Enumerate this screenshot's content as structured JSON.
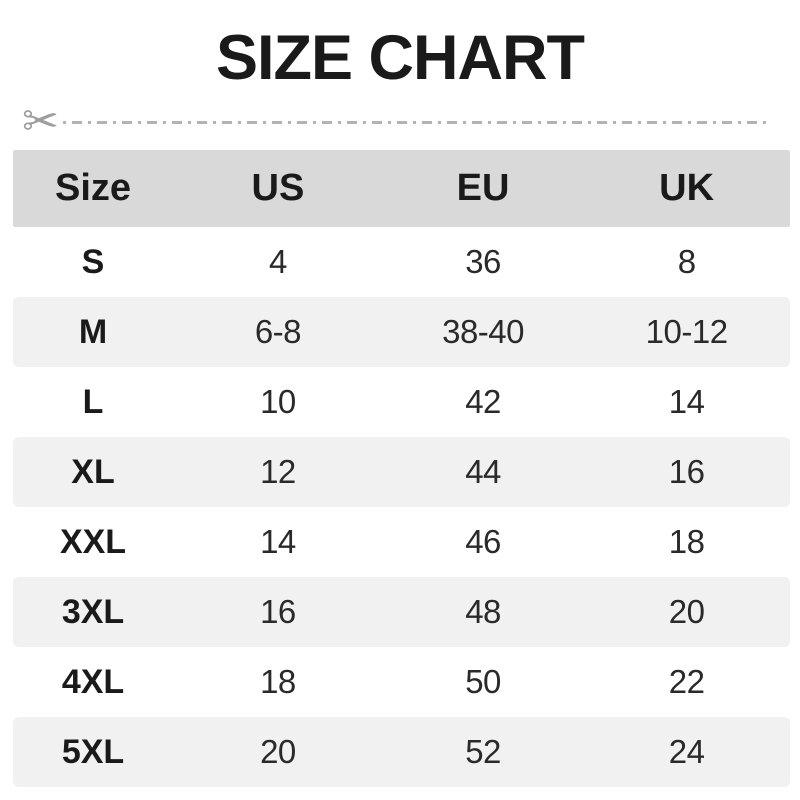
{
  "page": {
    "title": "SIZE CHART"
  },
  "cut_line": {
    "scissors_icon": "✂"
  },
  "chart_data": {
    "type": "table",
    "title": "SIZE CHART",
    "columns": [
      "Size",
      "US",
      "EU",
      "UK"
    ],
    "rows": [
      [
        "S",
        "4",
        "36",
        "8"
      ],
      [
        "M",
        "6-8",
        "38-40",
        "10-12"
      ],
      [
        "L",
        "10",
        "42",
        "14"
      ],
      [
        "XL",
        "12",
        "44",
        "16"
      ],
      [
        "XXL",
        "14",
        "46",
        "18"
      ],
      [
        "3XL",
        "16",
        "48",
        "20"
      ],
      [
        "4XL",
        "18",
        "50",
        "22"
      ],
      [
        "5XL",
        "20",
        "52",
        "24"
      ]
    ],
    "layout": {
      "header_background": "#d9d9d9",
      "alternate_row_background": "#f1f1f1",
      "striped_rows": [
        "M",
        "XL",
        "3XL",
        "5XL"
      ]
    }
  },
  "colors": {
    "header_bg": "#d9d9d9",
    "alt_row_bg": "#f1f1f1",
    "text": "#1a1a1a",
    "cut_line": "#b3b3b3",
    "scissors": "#9e9e9e"
  }
}
